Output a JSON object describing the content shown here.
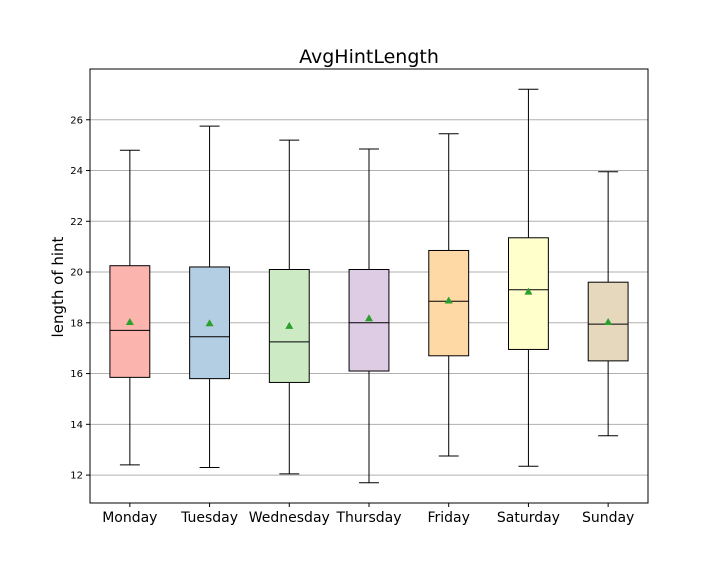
{
  "chart_data": {
    "type": "box",
    "title": "AvgHintLength",
    "xlabel": "",
    "ylabel": "length of hint",
    "ylim": [
      10.9,
      28.0
    ],
    "yticks": [
      12,
      14,
      16,
      18,
      20,
      22,
      24,
      26
    ],
    "grid": "horizontal",
    "mean_marker_color": "#2ca02c",
    "categories": [
      "Monday",
      "Tuesday",
      "Wednesday",
      "Thursday",
      "Friday",
      "Saturday",
      "Sunday"
    ],
    "boxes": [
      {
        "name": "Monday",
        "color": "#fbb4ae",
        "whislo": 12.4,
        "q1": 15.85,
        "median": 17.7,
        "q3": 20.25,
        "whishi": 24.8,
        "mean": 18.05
      },
      {
        "name": "Tuesday",
        "color": "#b3cde3",
        "whislo": 12.3,
        "q1": 15.8,
        "median": 17.45,
        "q3": 20.2,
        "whishi": 25.75,
        "mean": 18.0
      },
      {
        "name": "Wednesday",
        "color": "#ccebc5",
        "whislo": 12.05,
        "q1": 15.65,
        "median": 17.25,
        "q3": 20.1,
        "whishi": 25.2,
        "mean": 17.9
      },
      {
        "name": "Thursday",
        "color": "#decbe4",
        "whislo": 11.7,
        "q1": 16.1,
        "median": 18.0,
        "q3": 20.1,
        "whishi": 24.85,
        "mean": 18.2
      },
      {
        "name": "Friday",
        "color": "#fed9a6",
        "whislo": 12.75,
        "q1": 16.7,
        "median": 18.85,
        "q3": 20.85,
        "whishi": 25.45,
        "mean": 18.9
      },
      {
        "name": "Saturday",
        "color": "#ffffcc",
        "whislo": 12.35,
        "q1": 16.95,
        "median": 19.3,
        "q3": 21.35,
        "whishi": 27.2,
        "mean": 19.25
      },
      {
        "name": "Sunday",
        "color": "#e5d8bd",
        "whislo": 13.55,
        "q1": 16.5,
        "median": 17.95,
        "q3": 19.6,
        "whishi": 23.95,
        "mean": 18.05
      }
    ]
  }
}
